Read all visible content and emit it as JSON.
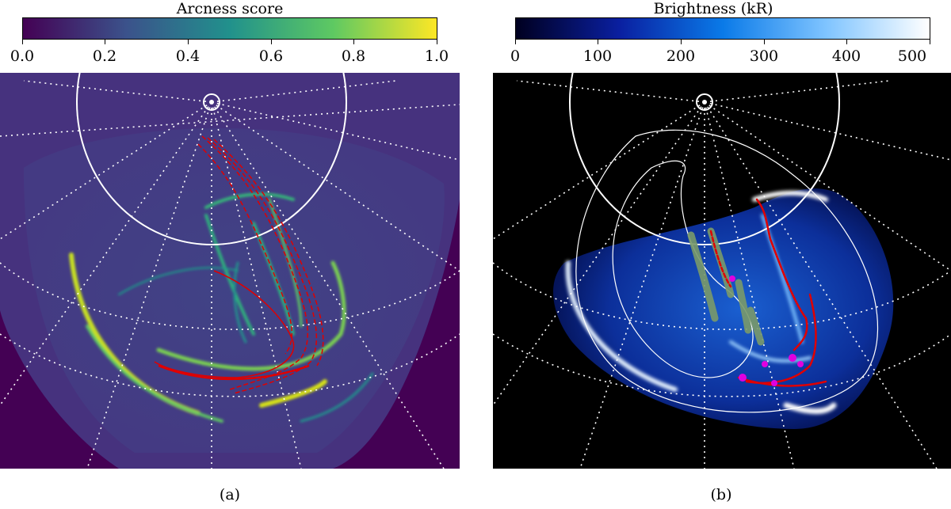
{
  "panel_a": {
    "colorbar_title": "Arcness score",
    "ticks": [
      "0.0",
      "0.2",
      "0.4",
      "0.6",
      "0.8",
      "1.0"
    ],
    "caption": "(a)",
    "colormap": [
      "#440154",
      "#3b528b",
      "#21918c",
      "#5ec962",
      "#fde725"
    ]
  },
  "panel_b": {
    "colorbar_title": "Brightness (kR)",
    "ticks": [
      "0",
      "100",
      "200",
      "300",
      "400",
      "500"
    ],
    "caption": "(b)",
    "colormap": [
      "#000020",
      "#0a1fa0",
      "#0a7ae8",
      "#7fc4ff",
      "#ffffff"
    ]
  }
}
